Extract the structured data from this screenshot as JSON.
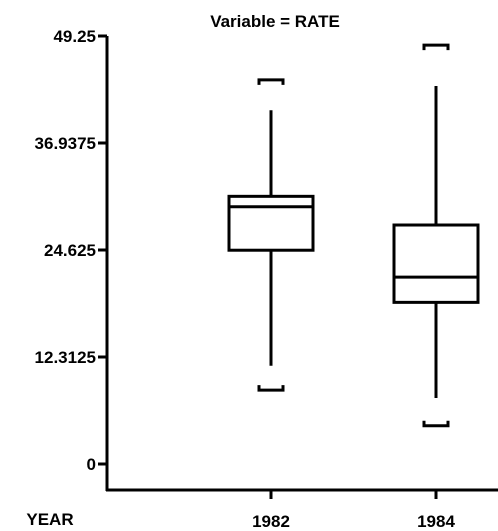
{
  "chart_data": {
    "type": "boxplot",
    "title": "Variable = RATE",
    "xlabel": "YEAR",
    "ylabel": "",
    "ylim": [
      0,
      49.25
    ],
    "yticks": [
      "0",
      "12.3125",
      "24.625",
      "36.9375",
      "49.25"
    ],
    "categories": [
      "1982",
      "1984"
    ],
    "boxes": [
      {
        "category": "1982",
        "whisker_low": 11.3,
        "q1": 24.6,
        "median": 29.6,
        "q3": 30.8,
        "whisker_high": 40.7,
        "min": 8.5,
        "max": 44.2
      },
      {
        "category": "1984",
        "whisker_low": 7.6,
        "q1": 18.6,
        "median": 21.5,
        "q3": 27.5,
        "whisker_high": 43.5,
        "min": 4.4,
        "max": 48.2
      }
    ],
    "grid": false,
    "legend": "none",
    "colors": {
      "line": "#000000",
      "background": "#ffffff"
    }
  }
}
